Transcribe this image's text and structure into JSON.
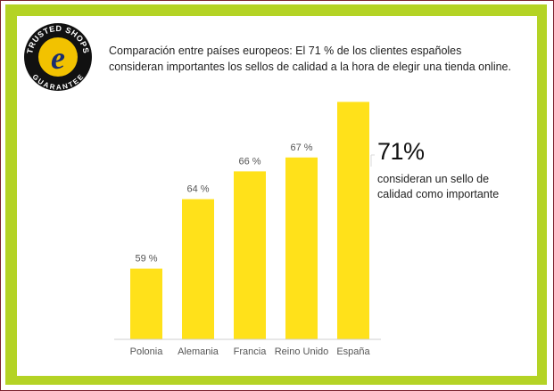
{
  "logo": {
    "ring_top_text": "TRUSTED SHOPS",
    "ring_bottom_text": "GUARANTEE",
    "mark": "e",
    "colors": {
      "ring": "#111111",
      "inner": "#f2c200",
      "mark": "#1a2d6e"
    }
  },
  "header": {
    "line1": "Comparación entre países europeos: El 71 % de los clientes españoles",
    "line2": "consideran importantes los sellos de calidad a la hora de elegir una tienda online."
  },
  "highlight": {
    "value": "71%",
    "line1": "consideran un sello de",
    "line2": "calidad como importante"
  },
  "chart_data": {
    "type": "bar",
    "categories": [
      "Polonia",
      "Alemania",
      "Francia",
      "Reino Unido",
      "España"
    ],
    "values": [
      59,
      64,
      66,
      67,
      71
    ],
    "value_labels": [
      "59 %",
      "64 %",
      "66 %",
      "67 %",
      ""
    ],
    "title": "",
    "xlabel": "",
    "ylabel": "",
    "grid": false,
    "colors": {
      "bar": "#ffe11a",
      "baseline": "#cfcfcf",
      "frame_green": "#b4d325",
      "frame_border": "#7a1f2b"
    }
  }
}
